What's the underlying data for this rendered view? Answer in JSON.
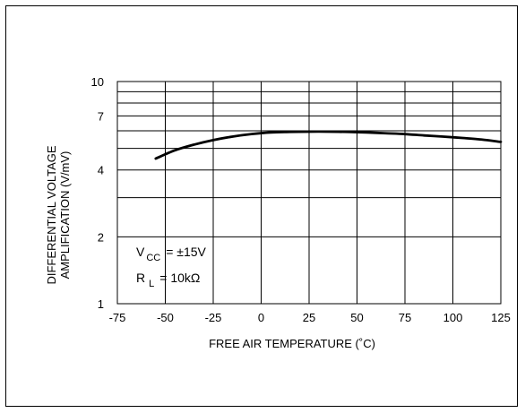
{
  "chart_data": {
    "type": "line",
    "title": "",
    "xlabel": "FREE AIR TEMPERATURE (˚C)",
    "ylabel_lines": [
      "DIFFERENTIAL VOLTAGE",
      "AMPLIFICATION (V/mV)"
    ],
    "xlim": [
      -75,
      125
    ],
    "ylim": [
      1,
      10
    ],
    "y_scale": "log",
    "grid": true,
    "x_ticks": [
      -75,
      -50,
      -25,
      0,
      25,
      50,
      75,
      100,
      125
    ],
    "y_ticks": [
      1,
      2,
      4,
      7,
      10
    ],
    "y_gridlines": [
      1,
      2,
      3,
      4,
      5,
      6,
      7,
      8,
      9,
      10
    ],
    "series": [
      {
        "x": [
          -55,
          -45,
          -35,
          -25,
          -15,
          -5,
          5,
          15,
          25,
          35,
          45,
          55,
          65,
          75,
          85,
          95,
          105,
          115,
          125
        ],
        "y": [
          4.5,
          4.9,
          5.2,
          5.45,
          5.65,
          5.8,
          5.9,
          5.93,
          5.95,
          5.95,
          5.93,
          5.9,
          5.85,
          5.8,
          5.72,
          5.65,
          5.57,
          5.48,
          5.35
        ]
      }
    ],
    "annotations": {
      "vcc": {
        "main": "V",
        "sub": "CC",
        "value": "= ±15V"
      },
      "rl": {
        "main": "R",
        "sub": "L",
        "value": "= 10kΩ"
      }
    }
  }
}
